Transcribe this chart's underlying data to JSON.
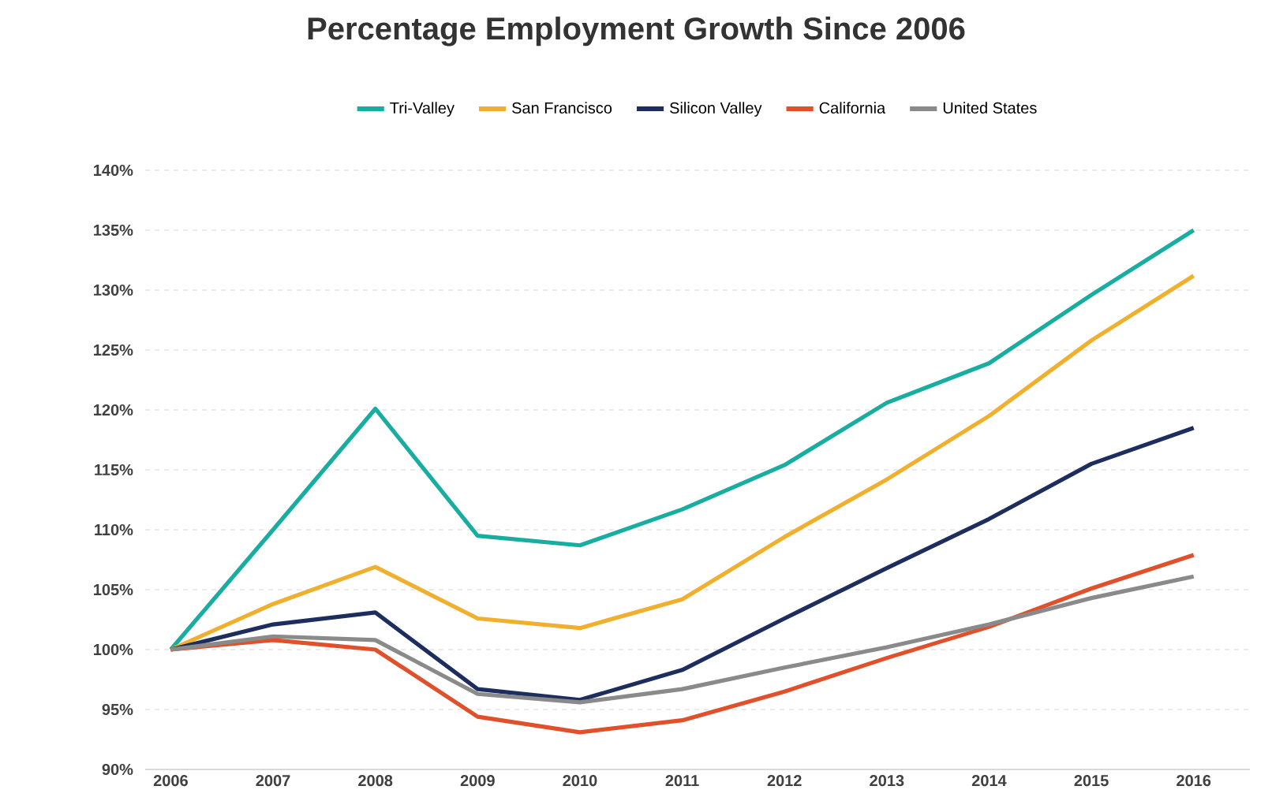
{
  "chart_data": {
    "type": "line",
    "title": "Percentage Employment Growth Since 2006",
    "categories": [
      "2006",
      "2007",
      "2008",
      "2009",
      "2010",
      "2011",
      "2012",
      "2013",
      "2014",
      "2015",
      "2016"
    ],
    "series": [
      {
        "name": "Tri-Valley",
        "color": "#17ada0",
        "values": [
          100,
          110,
          120.1,
          109.5,
          108.7,
          111.7,
          115.4,
          120.6,
          123.9,
          129.6,
          135
        ]
      },
      {
        "name": "San Francisco",
        "color": "#f0b02e",
        "values": [
          100,
          103.8,
          106.9,
          102.6,
          101.8,
          104.2,
          109.4,
          114.2,
          119.5,
          125.8,
          131.2
        ]
      },
      {
        "name": "Silicon Valley",
        "color": "#1d2e5e",
        "values": [
          100,
          102.1,
          103.1,
          96.7,
          95.8,
          98.3,
          102.6,
          106.8,
          110.9,
          115.5,
          118.5
        ]
      },
      {
        "name": "California",
        "color": "#e0502a",
        "values": [
          100,
          100.8,
          100,
          94.4,
          93.1,
          94.1,
          96.5,
          99.3,
          101.9,
          105.1,
          107.9
        ]
      },
      {
        "name": "United States",
        "color": "#8a8a8a",
        "values": [
          100,
          101.1,
          100.8,
          96.3,
          95.6,
          96.7,
          98.5,
          100.2,
          102.1,
          104.3,
          106.1
        ]
      }
    ],
    "ylim": [
      90,
      140
    ],
    "yticks": [
      {
        "value": 90,
        "label": "90%"
      },
      {
        "value": 95,
        "label": "95%"
      },
      {
        "value": 100,
        "label": "100%"
      },
      {
        "value": 105,
        "label": "105%"
      },
      {
        "value": 110,
        "label": "110%"
      },
      {
        "value": 115,
        "label": "115%"
      },
      {
        "value": 120,
        "label": "120%"
      },
      {
        "value": 125,
        "label": "125%"
      },
      {
        "value": 130,
        "label": "130%"
      },
      {
        "value": 135,
        "label": "135%"
      },
      {
        "value": 140,
        "label": "140%"
      }
    ],
    "grid": "y",
    "legend": "top",
    "marker": "none",
    "line_style": "solid"
  }
}
